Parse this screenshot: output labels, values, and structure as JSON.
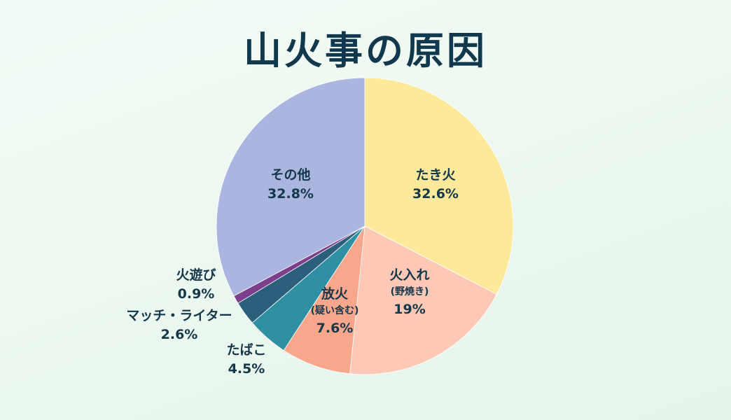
{
  "chart_data": {
    "type": "pie",
    "title": "山火事の原因",
    "slices": [
      {
        "label": "たき火",
        "sublabel": "",
        "value": 32.6,
        "value_label": "32.6%",
        "color": "#fde99a"
      },
      {
        "label": "火入れ",
        "sublabel": "(野焼き)",
        "value": 19,
        "value_label": "19%",
        "color": "#fdc8b5"
      },
      {
        "label": "放火",
        "sublabel": "(疑い含む)",
        "value": 7.6,
        "value_label": "7.6%",
        "color": "#f9a78c"
      },
      {
        "label": "たばこ",
        "sublabel": "",
        "value": 4.5,
        "value_label": "4.5%",
        "color": "#2f8fa3"
      },
      {
        "label": "マッチ・ライター",
        "sublabel": "",
        "value": 2.6,
        "value_label": "2.6%",
        "color": "#2c5f7c"
      },
      {
        "label": "火遊び",
        "sublabel": "",
        "value": 0.9,
        "value_label": "0.9%",
        "color": "#7b3f8c"
      },
      {
        "label": "その他",
        "sublabel": "",
        "value": 32.8,
        "value_label": "32.8%",
        "color": "#aab6e0"
      }
    ]
  }
}
